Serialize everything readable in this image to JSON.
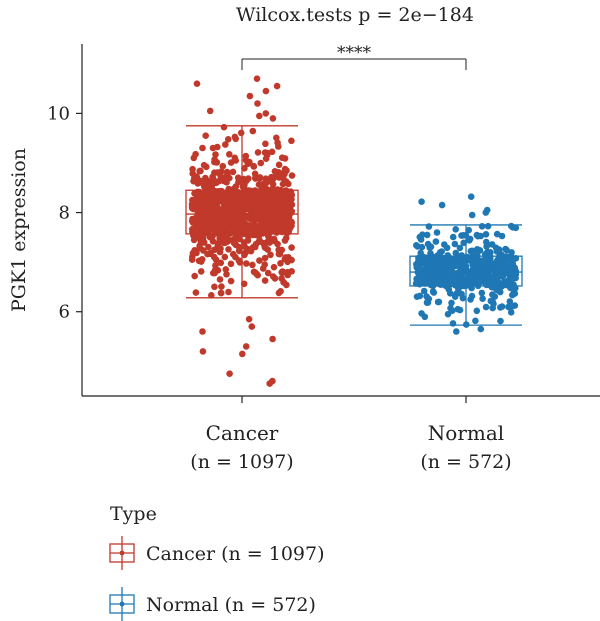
{
  "chart_data": {
    "type": "box-jitter",
    "title": "Wilcox.tests p = 2e−184",
    "ylabel": "PGK1 expression",
    "xlabel": "",
    "ylim": [
      4.3,
      11.4
    ],
    "yticks": [
      6,
      8,
      10
    ],
    "significance_label": "****",
    "legend_title": "Type",
    "legend_position": "bottom-left",
    "groups": [
      {
        "name": "Cancer",
        "count_label": "(n = 1097)",
        "legend_label": "Cancer (n = 1097)",
        "color": "#C0392B",
        "n": 1097,
        "box": {
          "lower_whisker": 6.28,
          "q1": 7.57,
          "median": 7.97,
          "q3": 8.45,
          "upper_whisker": 9.75
        },
        "outliers": [
          10.7,
          10.6,
          10.55,
          10.45,
          10.35,
          10.2,
          10.05,
          10.0,
          9.95,
          9.9,
          5.85,
          5.7,
          5.6,
          5.45,
          5.3,
          5.2,
          5.15,
          4.75,
          4.6,
          4.55
        ]
      },
      {
        "name": "Normal",
        "count_label": "(n = 572)",
        "legend_label": "Normal (n = 572)",
        "color": "#1F77B4",
        "n": 572,
        "box": {
          "lower_whisker": 5.73,
          "q1": 6.52,
          "median": 6.8,
          "q3": 7.12,
          "upper_whisker": 7.75
        },
        "outliers": [
          8.32,
          8.22,
          8.15,
          8.05,
          8.0,
          7.95,
          5.6,
          5.65
        ]
      }
    ]
  }
}
